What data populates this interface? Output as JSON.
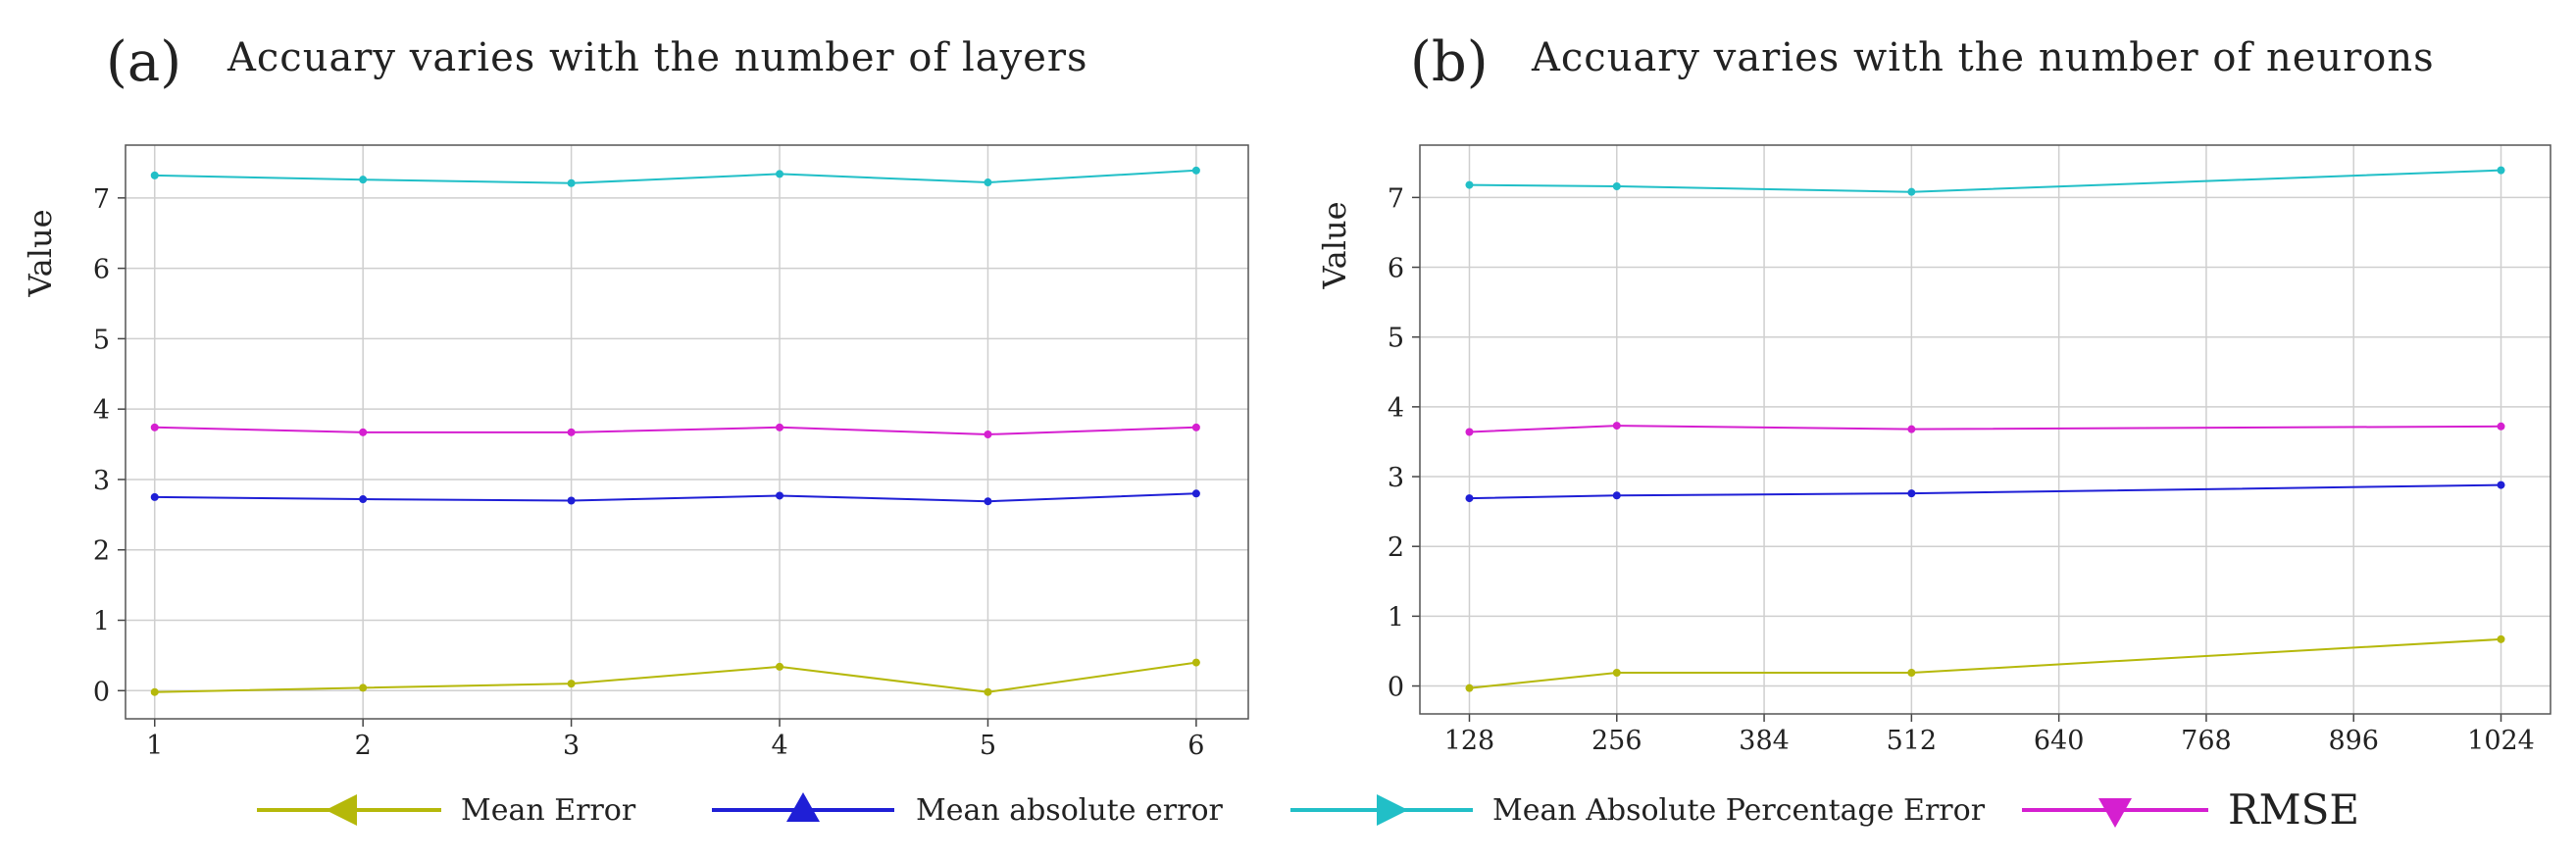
{
  "chart_data": [
    {
      "type": "line",
      "panel_label": "(a)",
      "title": "Accuary varies with the number of layers",
      "xlabel": "",
      "ylabel": "Value",
      "x": [
        1,
        2,
        3,
        4,
        5,
        6
      ],
      "xticks": [
        "1",
        "2",
        "3",
        "4",
        "5",
        "6"
      ],
      "xlim": [
        0.86,
        6.25
      ],
      "yticks": [
        "0",
        "1",
        "2",
        "3",
        "4",
        "5",
        "6",
        "7"
      ],
      "ylim": [
        -0.4,
        7.75
      ],
      "grid": true,
      "series": [
        {
          "name": "Mean Error",
          "color": "#b5b80a",
          "values": [
            -0.02,
            0.04,
            0.1,
            0.34,
            -0.02,
            0.4
          ]
        },
        {
          "name": "Mean absolute error",
          "color": "#1f1fd6",
          "values": [
            2.75,
            2.72,
            2.7,
            2.77,
            2.69,
            2.8
          ]
        },
        {
          "name": "Mean Absolute Percentage Error",
          "color": "#21bfc7",
          "values": [
            7.32,
            7.26,
            7.21,
            7.34,
            7.22,
            7.39
          ]
        },
        {
          "name": "RMSE",
          "color": "#d51fd0",
          "values": [
            3.74,
            3.67,
            3.67,
            3.74,
            3.64,
            3.74
          ]
        }
      ]
    },
    {
      "type": "line",
      "panel_label": "(b)",
      "title": "Accuary varies with the number of neurons",
      "xlabel": "",
      "ylabel": "Value",
      "x": [
        128,
        256,
        512,
        1024
      ],
      "xticks": [
        "128",
        "256",
        "384",
        "512",
        "640",
        "768",
        "896",
        "1024"
      ],
      "xtick_values": [
        128,
        256,
        384,
        512,
        640,
        768,
        896,
        1024
      ],
      "xlim": [
        85,
        1067
      ],
      "yticks": [
        "0",
        "1",
        "2",
        "3",
        "4",
        "5",
        "6",
        "7"
      ],
      "ylim": [
        -0.4,
        7.75
      ],
      "grid": true,
      "series": [
        {
          "name": "Mean Error",
          "color": "#b5b80a",
          "values": [
            -0.03,
            0.19,
            0.19,
            0.67
          ]
        },
        {
          "name": "Mean absolute error",
          "color": "#1f1fd6",
          "values": [
            2.69,
            2.73,
            2.76,
            2.88
          ]
        },
        {
          "name": "Mean Absolute Percentage Error",
          "color": "#21bfc7",
          "values": [
            7.18,
            7.16,
            7.08,
            7.39
          ]
        },
        {
          "name": "RMSE",
          "color": "#d51fd0",
          "values": [
            3.64,
            3.73,
            3.68,
            3.72
          ]
        }
      ]
    }
  ],
  "legend": [
    {
      "label": "Mean Error",
      "marker": "triangle-left",
      "color": "#b5b80a"
    },
    {
      "label": "Mean absolute error",
      "marker": "triangle-up",
      "color": "#1f1fd6"
    },
    {
      "label": "Mean Absolute Percentage Error",
      "marker": "triangle-right",
      "color": "#21bfc7"
    },
    {
      "label": "RMSE",
      "marker": "triangle-down",
      "color": "#d51fd0"
    }
  ]
}
